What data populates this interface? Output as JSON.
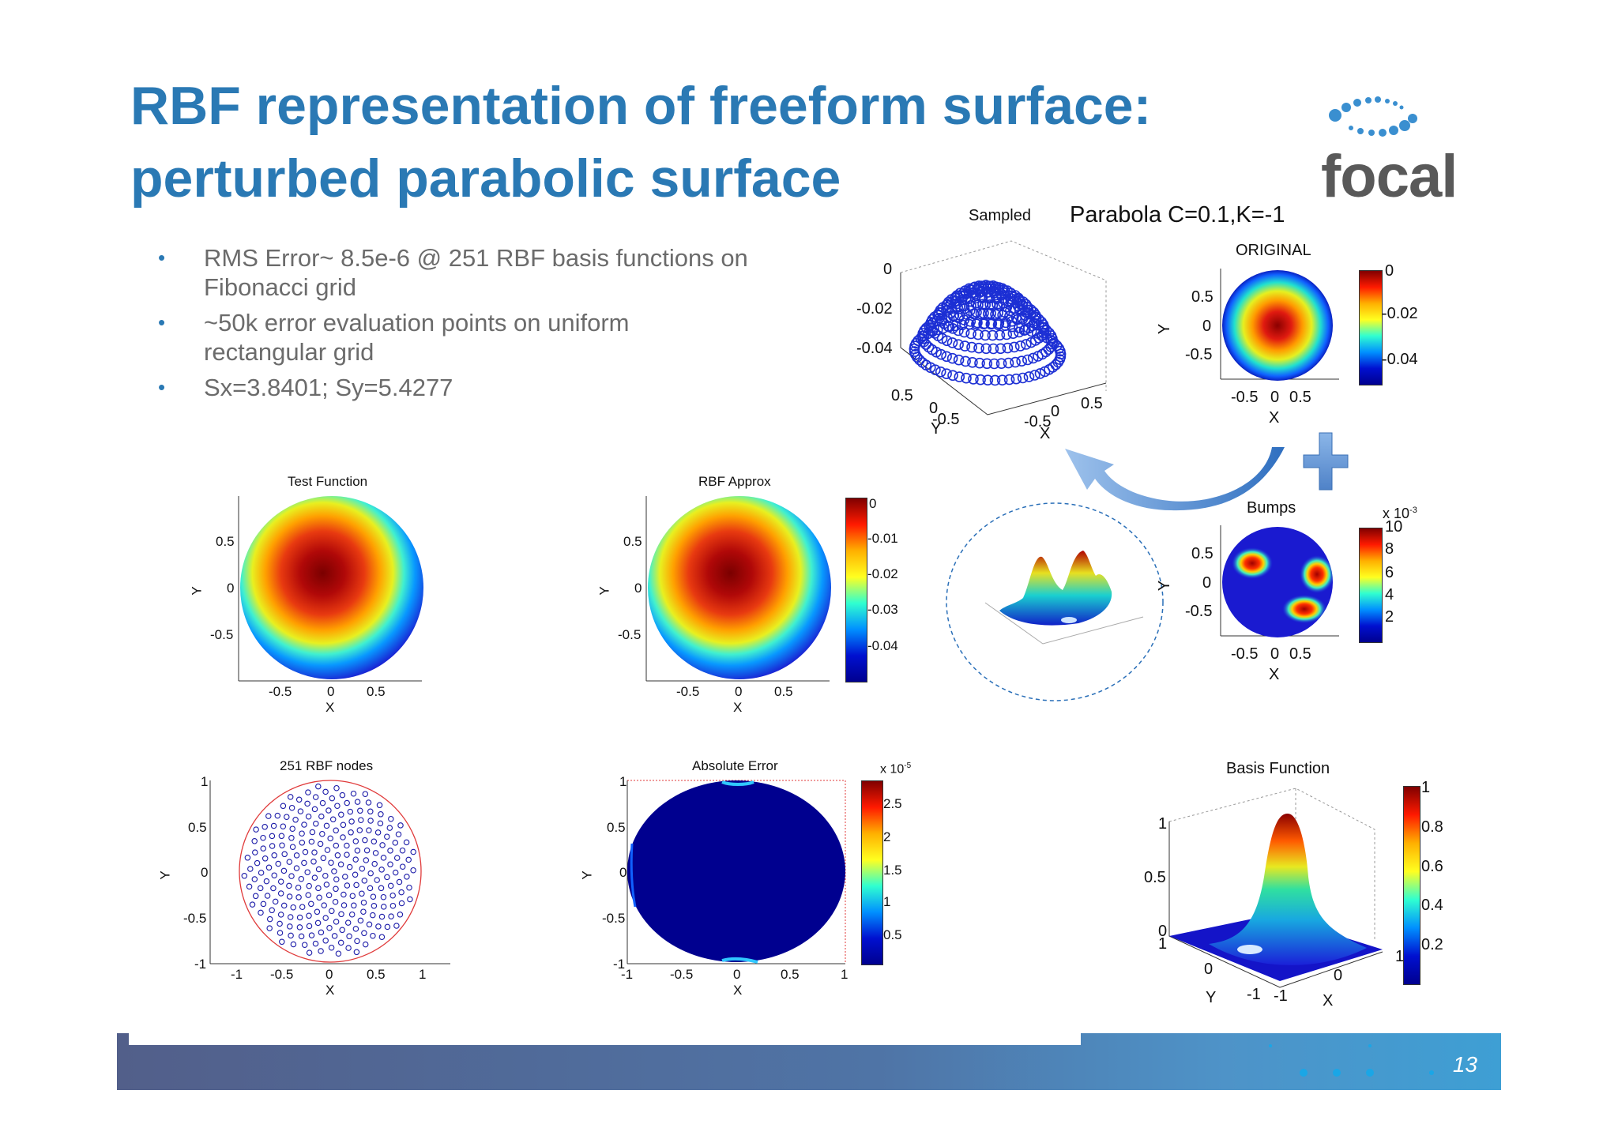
{
  "slide": {
    "title_line1": "RBF representation of  freeform surface:",
    "title_line2": "perturbed parabolic surface",
    "logo_text": "focal",
    "page_number": "13",
    "accent_color": "#2a79b4"
  },
  "bullets": [
    "RMS Error~ 8.5e-6 @ 251  RBF basis functions on Fibonacci grid",
    "~50k error evaluation points on uniform rectangular  grid",
    "Sx=3.8401; Sy=5.4277"
  ],
  "figures": {
    "sampled": {
      "title": "Sampled",
      "xlabel": "X",
      "ylabel": "Y",
      "zticks": [
        "0",
        "-0.02",
        "-0.04"
      ],
      "yticks": [
        "0.5",
        "0",
        "-0.5"
      ],
      "xticks": [
        "-0.5",
        "0",
        "0.5"
      ]
    },
    "parabola_label": "Parabola C=0.1,K=-1",
    "original": {
      "title": "ORIGINAL",
      "xlabel": "X",
      "ylabel": "Y",
      "xticks": [
        "-0.5",
        "0",
        "0.5"
      ],
      "yticks": [
        "0.5",
        "0",
        "-0.5"
      ],
      "colorbar": [
        "0",
        "-0.02",
        "-0.04"
      ]
    },
    "bumps": {
      "title": "Bumps",
      "xlabel": "X",
      "ylabel": "Y",
      "xticks": [
        "-0.5",
        "0",
        "0.5"
      ],
      "yticks": [
        "0.5",
        "0",
        "-0.5"
      ],
      "colorbar_scale": "x 10",
      "colorbar_exp": "-3",
      "colorbar": [
        "10",
        "8",
        "6",
        "4",
        "2"
      ]
    },
    "test_function": {
      "title": "Test Function",
      "xlabel": "X",
      "ylabel": "Y",
      "xticks": [
        "-0.5",
        "0",
        "0.5"
      ],
      "yticks": [
        "0.5",
        "0",
        "-0.5"
      ]
    },
    "rbf_approx": {
      "title": "RBF Approx",
      "xlabel": "X",
      "ylabel": "Y",
      "xticks": [
        "-0.5",
        "0",
        "0.5"
      ],
      "yticks": [
        "0.5",
        "0",
        "-0.5"
      ],
      "colorbar": [
        "0",
        "-0.01",
        "-0.02",
        "-0.03",
        "-0.04"
      ]
    },
    "rbf_nodes": {
      "title": "251 RBF nodes",
      "xlabel": "X",
      "ylabel": "Y",
      "xticks": [
        "-1",
        "-0.5",
        "0",
        "0.5",
        "1"
      ],
      "yticks": [
        "1",
        "0.5",
        "0",
        "-0.5",
        "-1"
      ],
      "node_count": 251
    },
    "abs_error": {
      "title": "Absolute Error",
      "xlabel": "X",
      "ylabel": "Y",
      "xticks": [
        "-1",
        "-0.5",
        "0",
        "0.5",
        "1"
      ],
      "yticks": [
        "1",
        "0.5",
        "0",
        "-0.5",
        "-1"
      ],
      "colorbar_scale": "x 10",
      "colorbar_exp": "-5",
      "colorbar": [
        "2.5",
        "2",
        "1.5",
        "1",
        "0.5"
      ]
    },
    "basis_function": {
      "title": "Basis Function",
      "xlabel": "X",
      "ylabel": "Y",
      "zticks": [
        "1",
        "0.5",
        "0"
      ],
      "yticks": [
        "1",
        "0",
        "-1"
      ],
      "xticks": [
        "-1",
        "0",
        "1"
      ],
      "colorbar": [
        "1",
        "0.8",
        "0.6",
        "0.4",
        "0.2"
      ]
    }
  },
  "colors": {
    "jet_dark_red": "#800000",
    "jet_dark_blue": "#00008f",
    "node_color": "#1a1aa8",
    "circle_color": "#e03a3a"
  }
}
